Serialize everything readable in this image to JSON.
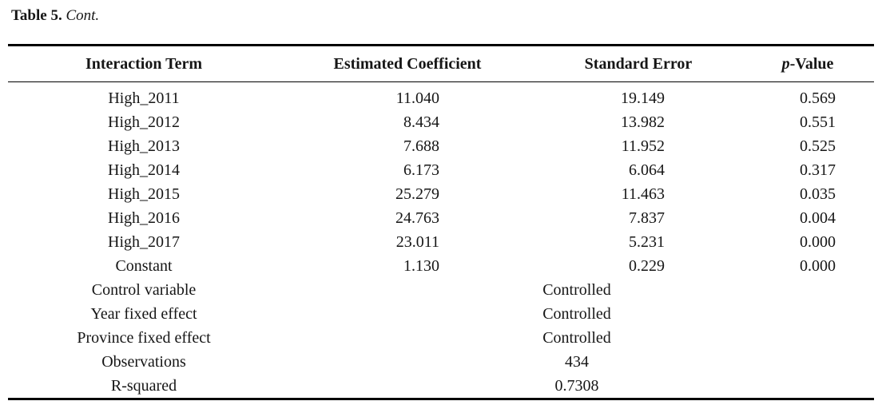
{
  "caption": {
    "label": "Table 5.",
    "cont": "Cont."
  },
  "table": {
    "header": {
      "interaction_term": "Interaction Term",
      "estimated_coefficient": "Estimated Coefficient",
      "standard_error": "Standard Error",
      "p_value_italic": "p",
      "p_value_rest": "-Value"
    },
    "rows": [
      {
        "term": "High_2011",
        "coef": "11.040",
        "se": "19.149",
        "p": "0.569"
      },
      {
        "term": "High_2012",
        "coef": "8.434",
        "se": "13.982",
        "p": "0.551"
      },
      {
        "term": "High_2013",
        "coef": "7.688",
        "se": "11.952",
        "p": "0.525"
      },
      {
        "term": "High_2014",
        "coef": "6.173",
        "se": "6.064",
        "p": "0.317"
      },
      {
        "term": "High_2015",
        "coef": "25.279",
        "se": "11.463",
        "p": "0.035"
      },
      {
        "term": "High_2016",
        "coef": "24.763",
        "se": "7.837",
        "p": "0.004"
      },
      {
        "term": "High_2017",
        "coef": "23.011",
        "se": "5.231",
        "p": "0.000"
      },
      {
        "term": "Constant",
        "coef": "1.130",
        "se": "0.229",
        "p": "0.000"
      }
    ],
    "span_rows": [
      {
        "label": "Control variable",
        "value": "Controlled"
      },
      {
        "label": "Year fixed effect",
        "value": "Controlled"
      },
      {
        "label": "Province fixed effect",
        "value": "Controlled"
      },
      {
        "label": "Observations",
        "value": "434"
      },
      {
        "label": "R-squared",
        "value": "0.7308"
      }
    ],
    "colors": {
      "text": "#161616",
      "rule": "#000000",
      "background": "#ffffff"
    }
  }
}
